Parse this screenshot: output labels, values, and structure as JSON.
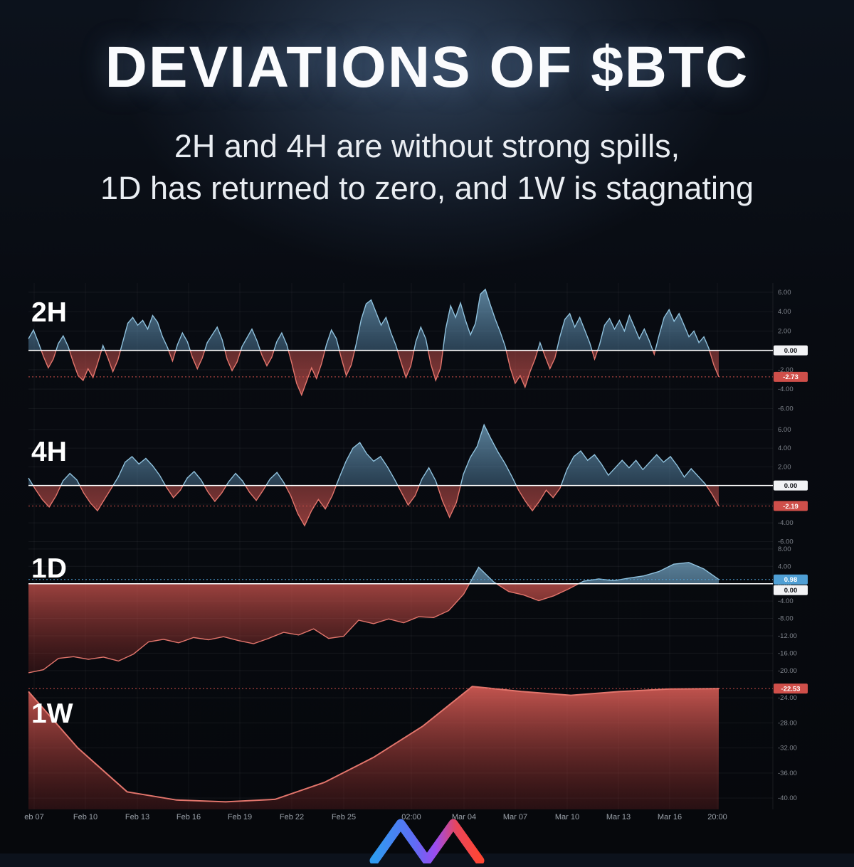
{
  "header": {
    "title": "DEVIATIONS OF $BTC",
    "subtitle_line1": "2H and 4H are without strong spills,",
    "subtitle_line2": "1D has returned to zero, and 1W is stagnating"
  },
  "colors": {
    "background": "#080b11",
    "glow_blue": "#3c5a7c",
    "line_blue": "#8fc1dd",
    "line_red": "#e2756c",
    "fill_blue": "#5b9cc4",
    "fill_red": "#e05c55",
    "zero_line": "#ffffff",
    "red_badge": "#cf4f4a",
    "blue_badge": "#4f9fd4",
    "white_badge": "#f2f3f5",
    "tick_text": "#81868e",
    "axis_text": "#9aa1a9"
  },
  "chart_data": {
    "type": "area",
    "x_axis": {
      "labels": [
        "eb 07",
        "Feb 10",
        "Feb 13",
        "Feb 16",
        "Feb 19",
        "Feb 22",
        "Feb 25",
        "02:00",
        "Mar 04",
        "Mar 07",
        "Mar 10",
        "Mar 13",
        "Mar 16",
        "20:00"
      ],
      "positions": [
        48,
        120,
        193,
        265,
        337,
        410,
        483,
        578,
        652,
        724,
        797,
        869,
        941,
        1008
      ]
    },
    "panels": [
      {
        "id": "2h",
        "label": "2H",
        "type": "oscillator-area",
        "fill": "zero",
        "red_gradient": "osc",
        "y_range": [
          6.8,
          -7.0
        ],
        "y_ticks": [
          6,
          4,
          2,
          0,
          -2,
          -4,
          -6
        ],
        "zero_badge": "0.00",
        "last_value": -2.73,
        "last_label": "-2.73",
        "badge_color": "red",
        "values": [
          1.2,
          2.1,
          0.8,
          -0.6,
          -1.8,
          -0.9,
          0.7,
          1.5,
          0.4,
          -1.2,
          -2.6,
          -3.1,
          -1.9,
          -2.8,
          -1.2,
          0.5,
          -0.8,
          -2.2,
          -1.0,
          0.9,
          2.8,
          3.4,
          2.6,
          3.1,
          2.2,
          3.6,
          2.9,
          1.4,
          0.3,
          -1.1,
          0.6,
          1.8,
          0.9,
          -0.7,
          -1.9,
          -0.8,
          0.8,
          1.6,
          2.4,
          1.1,
          -0.9,
          -2.1,
          -1.2,
          0.4,
          1.3,
          2.2,
          1.0,
          -0.5,
          -1.6,
          -0.7,
          0.9,
          1.8,
          0.6,
          -1.3,
          -3.4,
          -4.6,
          -3.2,
          -1.8,
          -2.9,
          -1.4,
          0.6,
          2.1,
          1.2,
          -0.8,
          -2.6,
          -1.5,
          0.7,
          3.2,
          4.8,
          5.2,
          3.9,
          2.6,
          3.4,
          1.8,
          0.5,
          -1.2,
          -2.8,
          -1.6,
          0.9,
          2.4,
          1.2,
          -1.4,
          -3.1,
          -1.8,
          2.2,
          4.6,
          3.4,
          4.9,
          3.1,
          1.6,
          2.8,
          5.8,
          6.3,
          4.7,
          3.2,
          1.9,
          0.4,
          -1.8,
          -3.4,
          -2.6,
          -3.8,
          -2.2,
          -0.9,
          0.8,
          -0.6,
          -1.9,
          -0.8,
          1.4,
          3.2,
          3.8,
          2.4,
          3.4,
          2.1,
          0.8,
          -0.9,
          0.6,
          2.6,
          3.3,
          2.2,
          3.1,
          2.0,
          3.6,
          2.4,
          1.2,
          2.2,
          1.0,
          -0.4,
          1.6,
          3.4,
          4.2,
          3.0,
          3.8,
          2.6,
          1.4,
          2.0,
          0.8,
          1.4,
          0.2,
          -1.5,
          -2.73
        ]
      },
      {
        "id": "4h",
        "label": "4H",
        "type": "oscillator-area",
        "fill": "zero",
        "red_gradient": "osc",
        "y_range": [
          6.9,
          -6.5
        ],
        "y_ticks": [
          6,
          4,
          2,
          0,
          -2,
          -4,
          -6
        ],
        "zero_badge": "0.00",
        "last_value": -2.19,
        "last_label": "-2.19",
        "badge_color": "red",
        "values": [
          0.8,
          -0.4,
          -1.5,
          -2.3,
          -1.1,
          0.5,
          1.3,
          0.6,
          -0.8,
          -1.9,
          -2.7,
          -1.5,
          -0.3,
          0.9,
          2.5,
          3.1,
          2.3,
          2.9,
          2.1,
          1.1,
          -0.2,
          -1.3,
          -0.5,
          0.8,
          1.5,
          0.6,
          -0.7,
          -1.7,
          -0.8,
          0.4,
          1.3,
          0.5,
          -0.7,
          -1.6,
          -0.5,
          0.7,
          1.4,
          0.3,
          -1.1,
          -3.0,
          -4.3,
          -2.7,
          -1.5,
          -2.5,
          -1.1,
          0.8,
          2.6,
          4.0,
          4.6,
          3.4,
          2.6,
          3.1,
          2.0,
          0.7,
          -0.7,
          -2.1,
          -1.1,
          0.7,
          1.9,
          0.5,
          -1.7,
          -3.4,
          -1.8,
          1.2,
          3.0,
          4.2,
          6.5,
          5.0,
          3.6,
          2.4,
          1.0,
          -0.5,
          -1.7,
          -2.7,
          -1.7,
          -0.5,
          -1.3,
          -0.3,
          1.7,
          3.1,
          3.7,
          2.7,
          3.3,
          2.3,
          1.1,
          1.9,
          2.7,
          1.9,
          2.7,
          1.7,
          2.5,
          3.3,
          2.5,
          3.1,
          2.1,
          0.9,
          1.8,
          1.0,
          0.2,
          -0.9,
          -2.19
        ]
      },
      {
        "id": "1d",
        "label": "1D",
        "type": "oscillator-area",
        "fill": "zero",
        "red_gradient": "big",
        "y_range": [
          8.3,
          -21.5
        ],
        "y_ticks": [
          8,
          4,
          0,
          -4,
          -8,
          -12,
          -16,
          -20
        ],
        "zero_badge": "0.00",
        "last_value": 0.98,
        "last_label": "0.98",
        "badge_color": "blue",
        "values": [
          -20.5,
          -19.8,
          -17.2,
          -16.8,
          -17.4,
          -16.9,
          -17.8,
          -16.2,
          -13.4,
          -12.8,
          -13.6,
          -12.4,
          -12.9,
          -12.2,
          -13.1,
          -13.8,
          -12.6,
          -11.2,
          -11.8,
          -10.4,
          -12.6,
          -12.1,
          -8.4,
          -9.2,
          -8.1,
          -9.0,
          -7.6,
          -7.8,
          -6.2,
          -2.4,
          3.8,
          0.4,
          -1.8,
          -2.6,
          -3.9,
          -2.8,
          -1.2,
          0.6,
          1.1,
          0.7,
          1.3,
          1.8,
          2.8,
          4.5,
          4.9,
          3.4,
          0.98
        ]
      },
      {
        "id": "1w",
        "label": "1W",
        "type": "area-fill-down",
        "fill": "bottom",
        "red_gradient": "big",
        "y_range": [
          -20.7,
          -41.8
        ],
        "y_ticks": [
          -24,
          -28,
          -32,
          -36,
          -40
        ],
        "zero_badge": null,
        "last_value": -22.53,
        "last_label": "-22.53",
        "badge_color": "red",
        "values": [
          -23.0,
          -32.0,
          -39.0,
          -40.3,
          -40.6,
          -40.2,
          -37.5,
          -33.5,
          -28.5,
          -22.2,
          -23.0,
          -23.6,
          -23.0,
          -22.6,
          -22.53
        ]
      }
    ]
  }
}
